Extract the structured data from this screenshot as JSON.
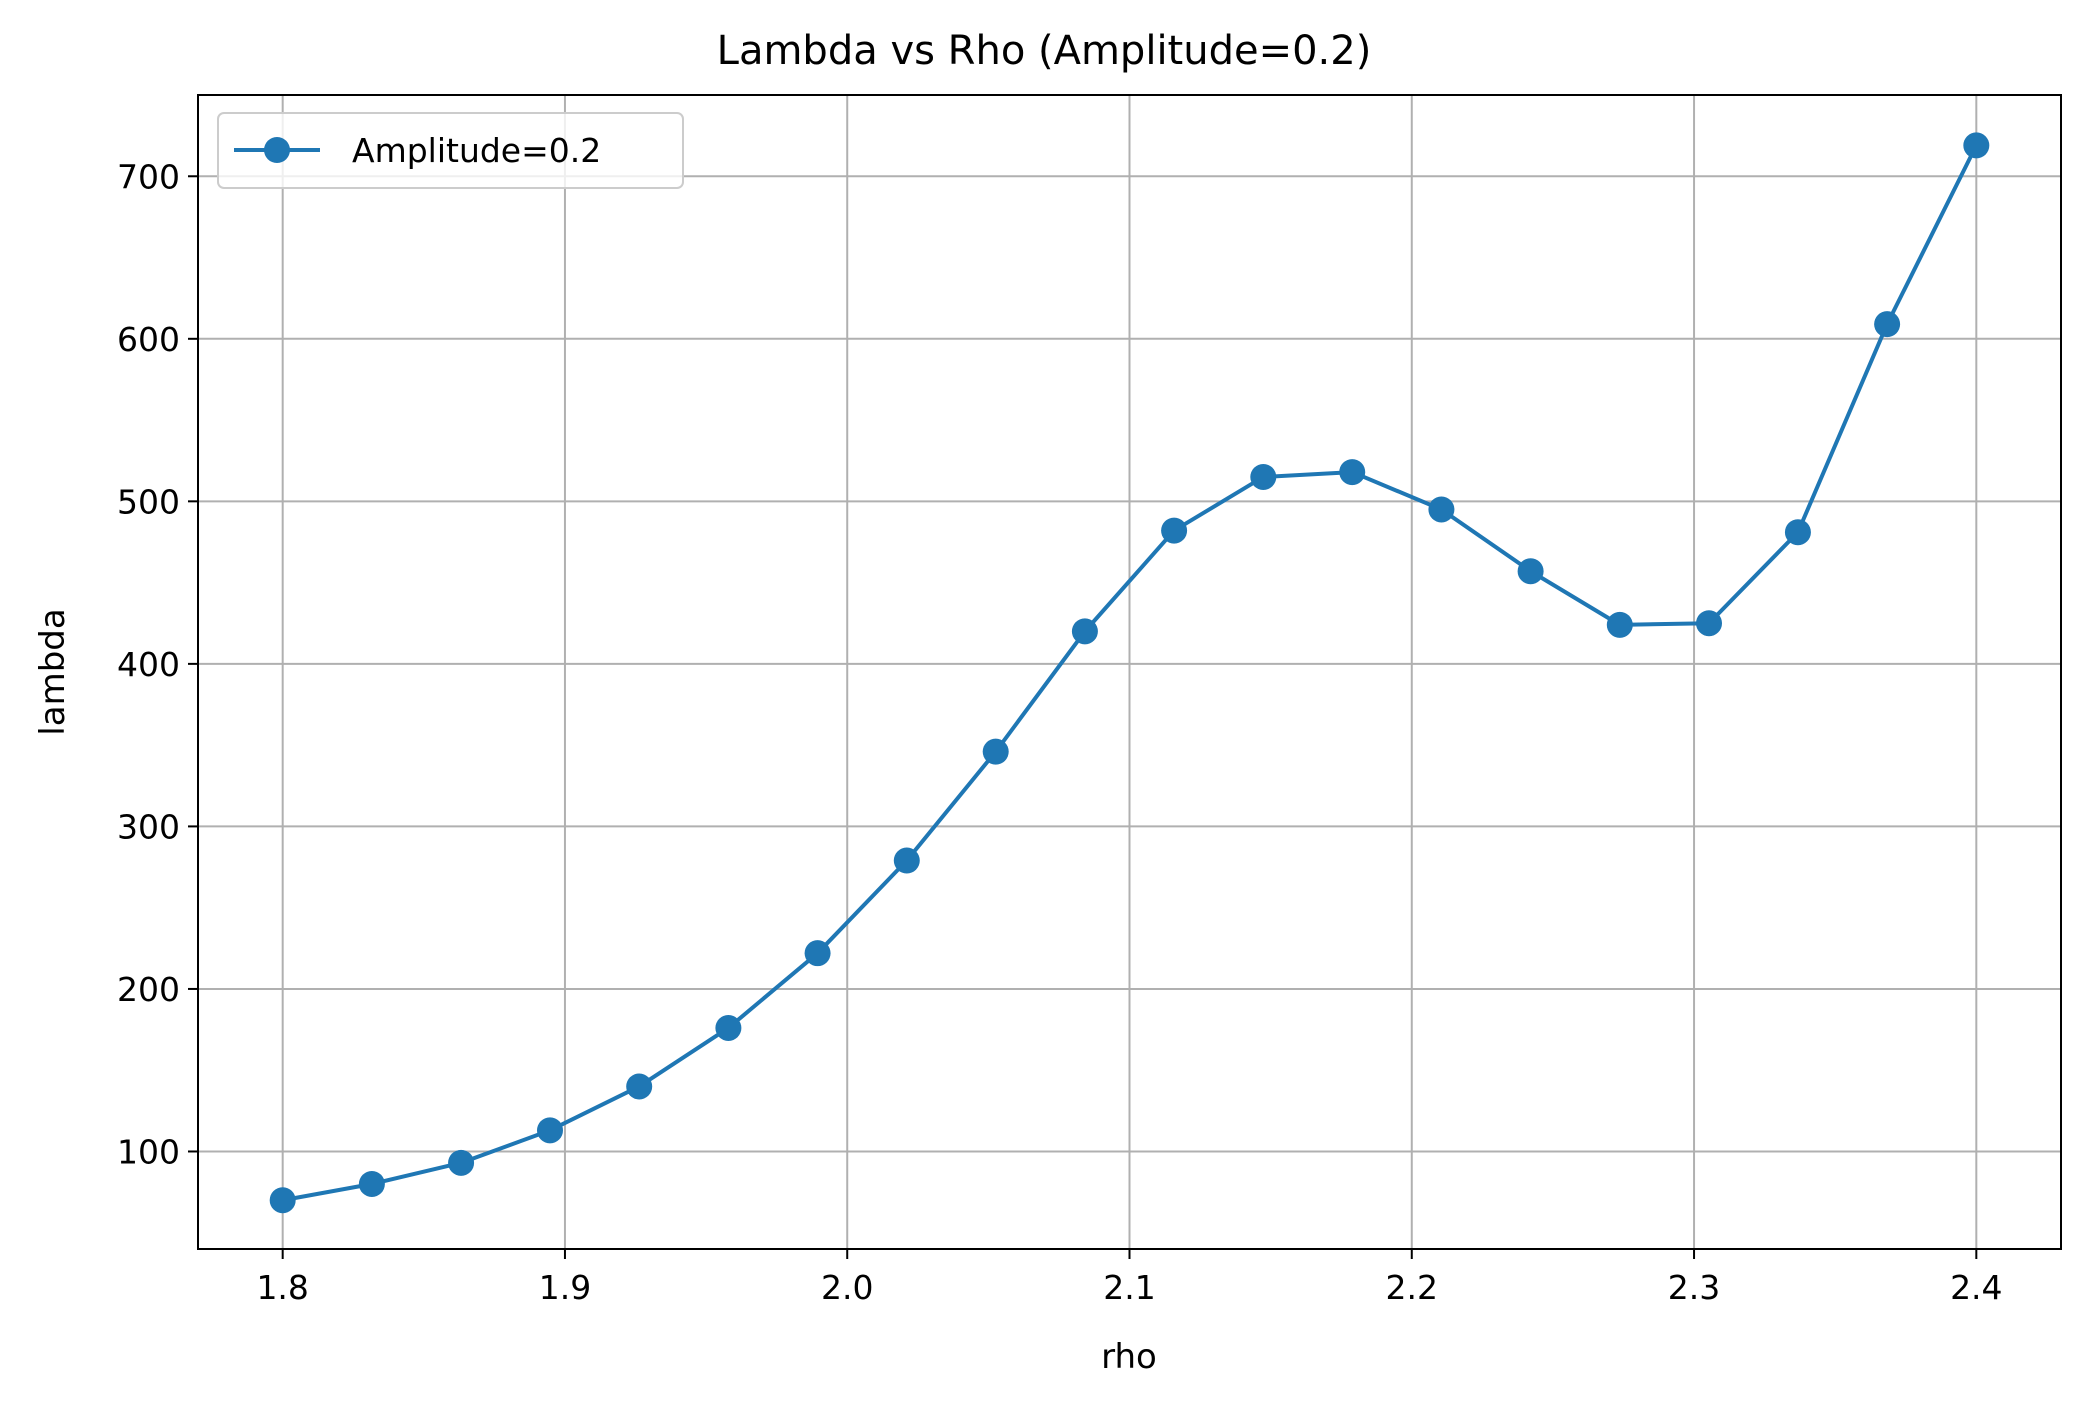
{
  "chart_data": {
    "type": "line",
    "title": "Lambda vs Rho (Amplitude=0.2)",
    "xlabel": "rho",
    "ylabel": "lambda",
    "xlim": [
      1.77,
      2.43
    ],
    "ylim": [
      40,
      750
    ],
    "xticks": [
      "1.8",
      "1.9",
      "2.0",
      "2.1",
      "2.2",
      "2.3",
      "2.4"
    ],
    "yticks": [
      "100",
      "200",
      "300",
      "400",
      "500",
      "600",
      "700"
    ],
    "grid": true,
    "legend_position": "upper-left",
    "series": [
      {
        "name": "Amplitude=0.2",
        "color": "#1f77b4",
        "marker": "circle",
        "x": [
          1.8,
          1.8316,
          1.8632,
          1.8947,
          1.9263,
          1.9579,
          1.9895,
          2.0211,
          2.0526,
          2.0842,
          2.1158,
          2.1474,
          2.1789,
          2.2105,
          2.2421,
          2.2737,
          2.3053,
          2.3368,
          2.3684,
          2.4
        ],
        "y": [
          70,
          80,
          93,
          113,
          140,
          176,
          222,
          279,
          346,
          420,
          482,
          515,
          518,
          495,
          457,
          424,
          425,
          481,
          609,
          719
        ]
      }
    ]
  }
}
